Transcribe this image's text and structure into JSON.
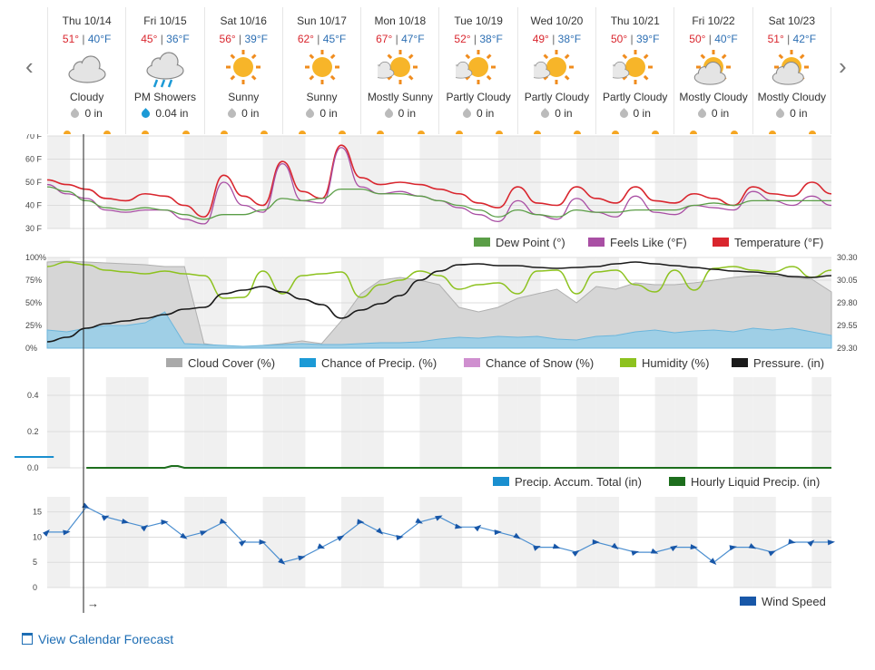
{
  "days": [
    {
      "name": "Thu 10/14",
      "hi": "51°",
      "lo": "40°F",
      "cond": "Cloudy",
      "precip": "0 in",
      "icon": "cloud-icon",
      "drop": "gray"
    },
    {
      "name": "Fri 10/15",
      "hi": "45°",
      "lo": "36°F",
      "cond": "PM Showers",
      "precip": "0.04 in",
      "icon": "rain-icon",
      "drop": "blue"
    },
    {
      "name": "Sat 10/16",
      "hi": "56°",
      "lo": "39°F",
      "cond": "Sunny",
      "precip": "0 in",
      "icon": "sun-icon",
      "drop": "gray"
    },
    {
      "name": "Sun 10/17",
      "hi": "62°",
      "lo": "45°F",
      "cond": "Sunny",
      "precip": "0 in",
      "icon": "sun-icon",
      "drop": "gray"
    },
    {
      "name": "Mon 10/18",
      "hi": "67°",
      "lo": "47°F",
      "cond": "Mostly Sunny",
      "precip": "0 in",
      "icon": "sun-cloud-icon",
      "drop": "gray"
    },
    {
      "name": "Tue 10/19",
      "hi": "52°",
      "lo": "38°F",
      "cond": "Partly Cloudy",
      "precip": "0 in",
      "icon": "sun-cloud-icon",
      "drop": "gray"
    },
    {
      "name": "Wed 10/20",
      "hi": "49°",
      "lo": "38°F",
      "cond": "Partly Cloudy",
      "precip": "0 in",
      "icon": "sun-cloud-icon",
      "drop": "gray"
    },
    {
      "name": "Thu 10/21",
      "hi": "50°",
      "lo": "39°F",
      "cond": "Partly Cloudy",
      "precip": "0 in",
      "icon": "sun-cloud-icon",
      "drop": "gray"
    },
    {
      "name": "Fri 10/22",
      "hi": "50°",
      "lo": "40°F",
      "cond": "Mostly Cloudy",
      "precip": "0 in",
      "icon": "cloud-sun-icon",
      "drop": "gray"
    },
    {
      "name": "Sat 10/23",
      "hi": "51°",
      "lo": "42°F",
      "cond": "Mostly Cloudy",
      "precip": "0 in",
      "icon": "cloud-sun-icon",
      "drop": "gray"
    }
  ],
  "nav": {
    "prev": "‹",
    "next": "›"
  },
  "colors": {
    "temperature": "#d9262e",
    "feels": "#a94fa4",
    "dew": "#5b9e47",
    "humidity": "#8dc21f",
    "pressure": "#1a1a1a",
    "cloud": "#a9a9a9",
    "precip": "#1c9ad6",
    "snow": "#cf8fcf",
    "accum": "#1a8fcf",
    "hourly": "#1d6e1d",
    "wind": "#1857a8"
  },
  "chart_data": [
    {
      "type": "line",
      "yticks": [
        "70 F",
        "60 F",
        "50 F",
        "40 F",
        "30 F"
      ],
      "ylim": [
        30,
        70
      ],
      "x_hours": [
        0,
        6,
        12,
        18,
        24,
        30,
        36,
        42,
        48,
        54,
        60,
        66,
        72,
        78,
        84,
        90,
        96,
        102,
        108,
        114,
        120,
        126,
        132,
        138,
        144,
        150,
        156,
        162,
        168,
        174,
        180,
        186,
        192,
        198,
        204,
        210,
        216,
        222,
        228,
        234,
        240
      ],
      "series": [
        {
          "name": "Temperature (°F)",
          "values": [
            51,
            49,
            47,
            43,
            42,
            45,
            44,
            40,
            35,
            53,
            44,
            40,
            59,
            46,
            43,
            66,
            52,
            49,
            50,
            49,
            47,
            45,
            41,
            39,
            48,
            41,
            40,
            48,
            43,
            41,
            48,
            42,
            41,
            45,
            43,
            40,
            48,
            45,
            44,
            50,
            45
          ]
        },
        {
          "name": "Feels Like (°F)",
          "values": [
            49,
            45,
            43,
            38,
            37,
            38,
            38,
            34,
            32,
            50,
            40,
            37,
            58,
            42,
            41,
            65,
            48,
            45,
            46,
            44,
            42,
            39,
            36,
            33,
            42,
            36,
            34,
            43,
            37,
            35,
            44,
            37,
            36,
            40,
            39,
            38,
            46,
            42,
            40,
            44,
            40
          ]
        },
        {
          "name": "Dew Point (°)",
          "values": [
            48,
            46,
            42,
            39,
            38,
            39,
            38,
            36,
            34,
            36,
            36,
            38,
            43,
            42,
            43,
            47,
            47,
            45,
            45,
            44,
            42,
            40,
            38,
            35,
            38,
            36,
            35,
            38,
            37,
            37,
            38,
            38,
            38,
            40,
            41,
            40,
            42,
            42,
            42,
            42,
            42
          ]
        }
      ]
    },
    {
      "type": "area",
      "yticks": [
        "100%",
        "75%",
        "50%",
        "25%",
        "0%"
      ],
      "y2ticks": [
        "30.30",
        "30.05",
        "29.80",
        "29.55",
        "29.30"
      ],
      "x_hours": [
        0,
        6,
        12,
        18,
        24,
        30,
        36,
        42,
        48,
        54,
        60,
        66,
        72,
        78,
        84,
        90,
        96,
        102,
        108,
        114,
        120,
        126,
        132,
        138,
        144,
        150,
        156,
        162,
        168,
        174,
        180,
        186,
        192,
        198,
        204,
        210,
        216,
        222,
        228,
        234,
        240
      ],
      "series": [
        {
          "name": "Cloud Cover (%)",
          "values": [
            95,
            96,
            95,
            94,
            93,
            92,
            90,
            90,
            5,
            2,
            1,
            3,
            5,
            8,
            5,
            30,
            60,
            75,
            78,
            75,
            70,
            45,
            40,
            45,
            55,
            60,
            65,
            50,
            68,
            65,
            72,
            70,
            70,
            72,
            75,
            78,
            80,
            80,
            78,
            76,
            62
          ]
        },
        {
          "name": "Chance of Precip. (%)",
          "values": [
            20,
            18,
            22,
            25,
            25,
            28,
            40,
            5,
            4,
            3,
            2,
            3,
            4,
            5,
            4,
            4,
            5,
            6,
            6,
            7,
            10,
            12,
            11,
            13,
            12,
            13,
            10,
            9,
            13,
            14,
            18,
            20,
            17,
            19,
            20,
            18,
            22,
            20,
            22,
            18,
            14
          ]
        },
        {
          "name": "Chance of Snow (%)",
          "values": [
            0,
            0,
            0,
            0,
            0,
            0,
            0,
            0,
            0,
            0,
            0,
            0,
            0,
            0,
            0,
            0,
            0,
            0,
            0,
            0,
            0,
            0,
            0,
            0,
            0,
            0,
            0,
            0,
            0,
            0,
            0,
            0,
            0,
            0,
            0,
            0,
            0,
            0,
            0,
            0,
            0
          ]
        },
        {
          "name": "Humidity (%)",
          "values": [
            90,
            95,
            92,
            86,
            84,
            82,
            85,
            82,
            80,
            55,
            56,
            85,
            60,
            80,
            82,
            84,
            56,
            70,
            75,
            85,
            80,
            65,
            70,
            72,
            60,
            85,
            86,
            60,
            84,
            86,
            70,
            62,
            86,
            64,
            88,
            90,
            86,
            84,
            90,
            78,
            86
          ]
        },
        {
          "name": "Pressure. (in)",
          "values": [
            29.37,
            29.42,
            29.52,
            29.57,
            29.6,
            29.63,
            29.67,
            29.73,
            29.75,
            29.9,
            29.94,
            29.98,
            29.92,
            29.84,
            29.78,
            29.63,
            29.72,
            29.79,
            29.88,
            30.05,
            30.15,
            30.22,
            30.23,
            30.21,
            30.21,
            30.19,
            30.18,
            30.19,
            30.2,
            30.23,
            30.25,
            30.23,
            30.21,
            30.19,
            30.17,
            30.15,
            30.14,
            30.12,
            30.09,
            30.08,
            30.1
          ]
        }
      ]
    },
    {
      "type": "line",
      "yticks": [
        "0.4",
        "0.2",
        "0.0"
      ],
      "ylim": [
        0,
        0.5
      ],
      "series": [
        {
          "name": "Precip. Accum. Total (in)",
          "x_hours": [
            0,
            6,
            12
          ],
          "values": [
            0.06,
            0.06,
            0.06
          ]
        },
        {
          "name": "Hourly Liquid Precip. (in)",
          "x_hours": [
            12,
            24,
            36,
            38,
            40,
            42,
            48,
            120,
            240
          ],
          "values": [
            0,
            0,
            0,
            0.01,
            0.01,
            0,
            0,
            0,
            0
          ]
        }
      ]
    },
    {
      "type": "line",
      "yticks": [
        "15",
        "10",
        "5",
        "0"
      ],
      "ylim": [
        0,
        18
      ],
      "x_hours": [
        0,
        6,
        12,
        18,
        24,
        30,
        36,
        42,
        48,
        54,
        60,
        66,
        72,
        78,
        84,
        90,
        96,
        102,
        108,
        114,
        120,
        126,
        132,
        138,
        144,
        150,
        156,
        162,
        168,
        174,
        180,
        186,
        192,
        198,
        204,
        210,
        216,
        222,
        228,
        234,
        240
      ],
      "series": [
        {
          "name": "Wind Speed",
          "values": [
            11,
            11,
            16,
            14,
            13,
            12,
            13,
            10,
            11,
            13,
            9,
            9,
            5,
            6,
            8,
            10,
            13,
            11,
            10,
            13,
            14,
            12,
            12,
            11,
            10,
            8,
            8,
            7,
            9,
            8,
            7,
            7,
            8,
            8,
            5,
            8,
            8,
            7,
            9,
            9,
            9
          ]
        }
      ]
    }
  ],
  "legends": {
    "temp": [
      "Dew Point (°)",
      "Feels Like (°F)",
      "Temperature (°F)"
    ],
    "atmos": [
      "Cloud Cover (%)",
      "Chance of Precip. (%)",
      "Chance of Snow (%)",
      "Humidity (%)",
      "Pressure. (in)"
    ],
    "precip": [
      "Precip. Accum. Total (in)",
      "Hourly Liquid Precip. (in)"
    ],
    "wind": [
      "Wind Speed"
    ]
  },
  "now_marker": "→",
  "calendar_link": "View Calendar Forecast"
}
